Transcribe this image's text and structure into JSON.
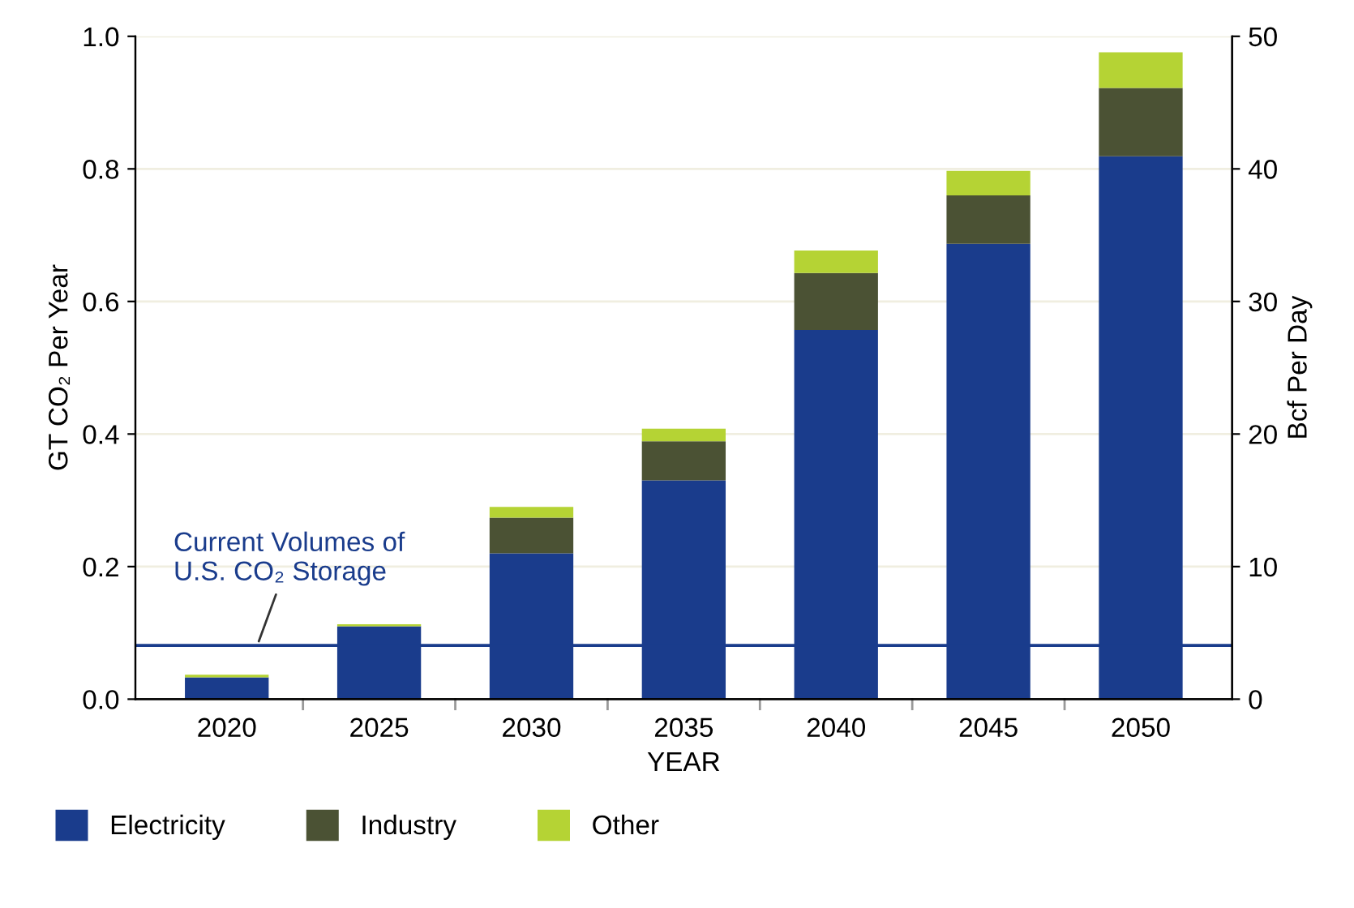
{
  "chart_data": {
    "type": "bar",
    "stacked": true,
    "xlabel": "YEAR",
    "ylabel": "GT CO₂ Per Year",
    "y2label": "Bcf Per Day",
    "categories": [
      "2020",
      "2025",
      "2030",
      "2035",
      "2040",
      "2045",
      "2050"
    ],
    "series": [
      {
        "name": "Electricity",
        "color": "#1a3c8c",
        "values": [
          0.033,
          0.11,
          0.22,
          0.33,
          0.557,
          0.687,
          0.819
        ]
      },
      {
        "name": "Industry",
        "color": "#4b5234",
        "values": [
          0,
          0,
          0.054,
          0.059,
          0.086,
          0.073,
          0.103
        ]
      },
      {
        "name": "Other",
        "color": "#b5d334",
        "values": [
          0.004,
          0.003,
          0.016,
          0.019,
          0.034,
          0.037,
          0.054
        ]
      }
    ],
    "ylim": [
      0,
      1.0
    ],
    "yticks": [
      {
        "value": 0,
        "label": "0.0"
      },
      0.2,
      0.4,
      0.6,
      0.8,
      {
        "value": 1.0,
        "label": "1.0"
      }
    ],
    "y2lim": [
      0,
      50
    ],
    "y2ticks": [
      0,
      10,
      20,
      30,
      40,
      50
    ],
    "ref_lines": [
      {
        "axis": "y",
        "value": 0.081,
        "label": "Current Volumes of\nU.S. CO₂ Storage",
        "color": "#1a3c8c"
      }
    ],
    "grid": "y",
    "legend": "bottom"
  }
}
